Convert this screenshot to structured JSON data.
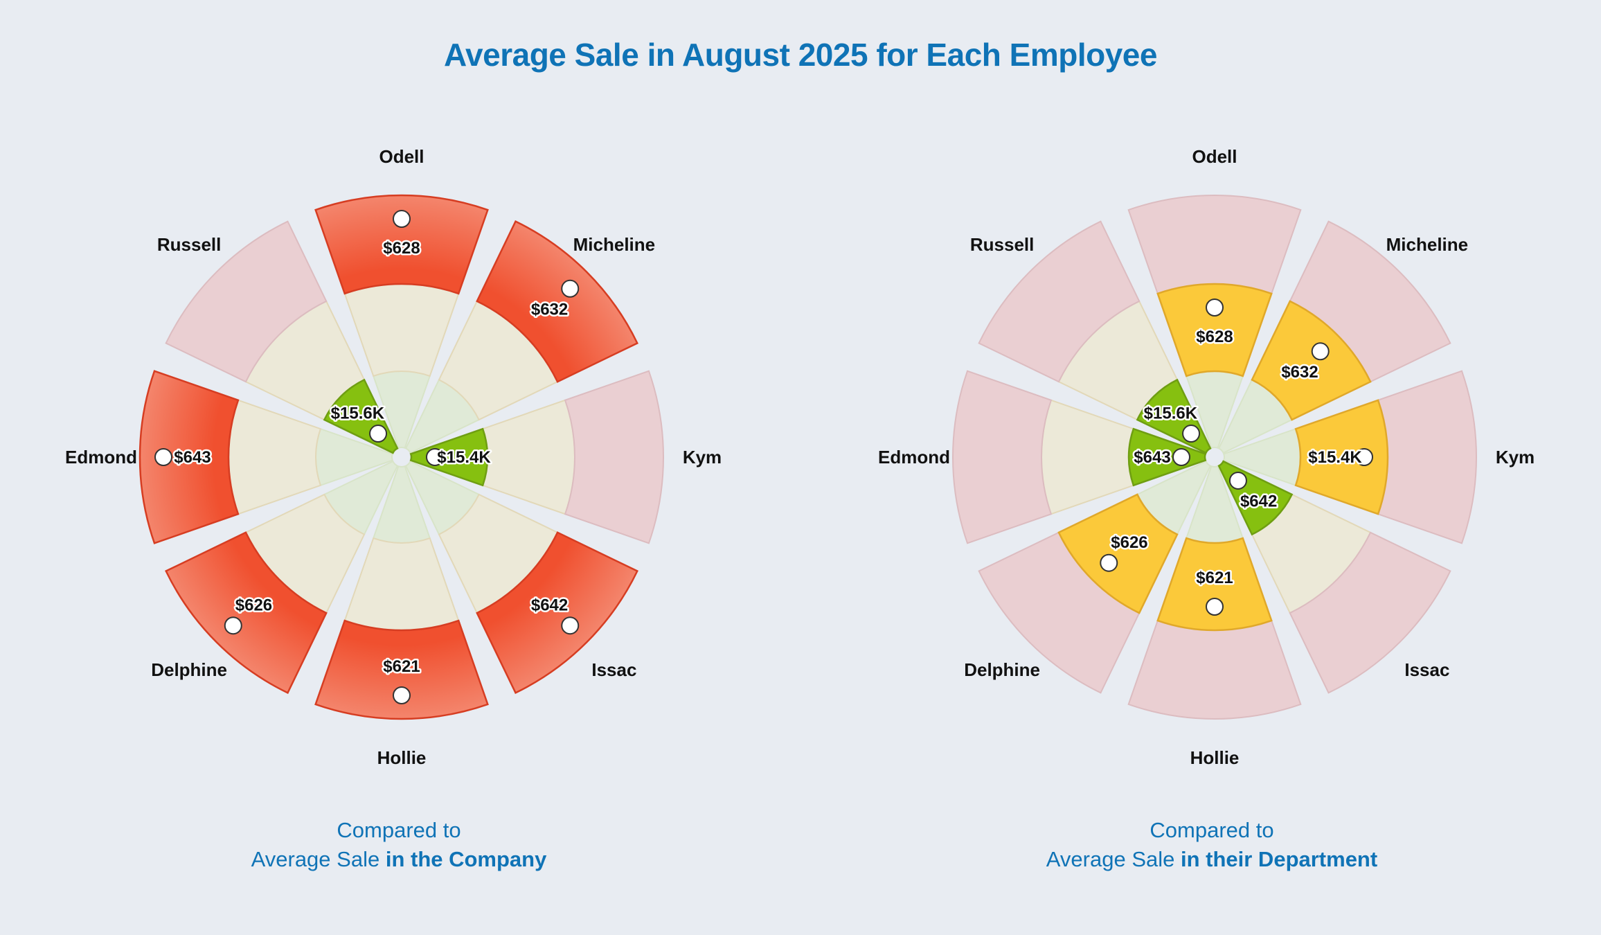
{
  "title": "Average Sale in August 2025 for Each Employee",
  "colors": {
    "title": "#0f73b6",
    "high": "#f0502f",
    "mid": "#fbc93a",
    "low": "#8cc413",
    "band_outer": "#eacfd2",
    "band_middle": "#ece9d8",
    "band_inner": "#e0ead7"
  },
  "chart_data": [
    {
      "type": "polar-bar",
      "caption_line1": "Compared to",
      "caption_line2_plain": "Average Sale ",
      "caption_line2_bold": "in the Company",
      "categories": [
        "Odell",
        "Micheline",
        "Kym",
        "Issac",
        "Hollie",
        "Delphine",
        "Edmond",
        "Russell"
      ],
      "values": [
        "$628",
        "$632",
        "$15.4K",
        "$642",
        "$621",
        "$626",
        "$643",
        "$15.6K"
      ],
      "levels": [
        3,
        3,
        1,
        3,
        3,
        3,
        3,
        1
      ],
      "colors": [
        "high",
        "high",
        "low",
        "high",
        "high",
        "high",
        "high",
        "low"
      ]
    },
    {
      "type": "polar-bar",
      "caption_line1": "Compared to",
      "caption_line2_plain": "Average Sale ",
      "caption_line2_bold": "in their Department",
      "categories": [
        "Odell",
        "Micheline",
        "Kym",
        "Issac",
        "Hollie",
        "Delphine",
        "Edmond",
        "Russell"
      ],
      "values": [
        "$628",
        "$632",
        "$15.4K",
        "$642",
        "$621",
        "$626",
        "$643",
        "$15.6K"
      ],
      "levels": [
        2,
        2,
        2,
        1,
        2,
        2,
        1,
        1
      ],
      "colors": [
        "mid",
        "mid",
        "mid",
        "low",
        "mid",
        "mid",
        "low",
        "low"
      ]
    }
  ]
}
